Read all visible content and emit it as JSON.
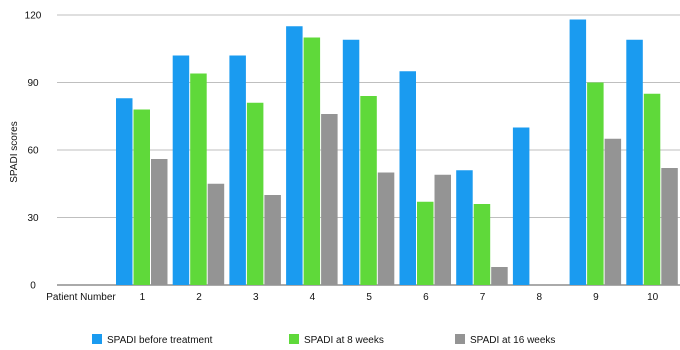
{
  "chart_data": {
    "type": "bar",
    "title": "",
    "xlabel": "",
    "ylabel": "SPADI scores",
    "x_axis_first_label": "Patient Number",
    "categories": [
      "1",
      "2",
      "3",
      "4",
      "5",
      "6",
      "7",
      "8",
      "9",
      "10"
    ],
    "ylim": [
      0,
      120
    ],
    "yticks": [
      0,
      30,
      60,
      90,
      120
    ],
    "grid": true,
    "legend_position": "bottom",
    "series": [
      {
        "name": "SPADI before treatment",
        "color": "#1a9bf0",
        "values": [
          83,
          102,
          102,
          115,
          109,
          95,
          51,
          70,
          118,
          109
        ]
      },
      {
        "name": "SPADI at 8 weeks",
        "color": "#5fd93a",
        "values": [
          78,
          94,
          81,
          110,
          84,
          37,
          36,
          0,
          90,
          85
        ]
      },
      {
        "name": "SPADI at 16 weeks",
        "color": "#949494",
        "values": [
          56,
          45,
          40,
          76,
          50,
          49,
          8,
          0,
          65,
          52
        ]
      }
    ]
  }
}
